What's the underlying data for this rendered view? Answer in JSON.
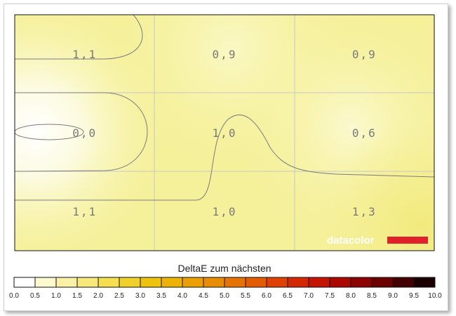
{
  "chart_data": {
    "type": "heatmap",
    "rows": 3,
    "cols": 3,
    "values": [
      [
        "1,1",
        "0,9",
        "0,9"
      ],
      [
        "0,0",
        "1,0",
        "0,6"
      ],
      [
        "1,1",
        "1,0",
        "1,3"
      ]
    ],
    "numeric_values": [
      [
        1.1,
        0.9,
        0.9
      ],
      [
        0.0,
        1.0,
        0.6
      ],
      [
        1.1,
        1.0,
        1.3
      ]
    ],
    "grid": true,
    "scale": {
      "title": "DeltaE zum nächsten",
      "min": 0.0,
      "max": 10.0,
      "ticks": [
        "0.0",
        "0.5",
        "1.0",
        "1.5",
        "2.0",
        "2.5",
        "3.0",
        "3.5",
        "4.0",
        "4.5",
        "5.0",
        "5.5",
        "6.0",
        "6.5",
        "7.0",
        "7.5",
        "8.0",
        "8.5",
        "9.0",
        "9.5",
        "10.0"
      ],
      "colors": [
        "#ffffff",
        "#fdf9cf",
        "#faf0a6",
        "#f7e87c",
        "#f5de4f",
        "#f0d12a",
        "#eec30d",
        "#ecb206",
        "#ea9f05",
        "#e88c04",
        "#e57404",
        "#e35c03",
        "#de4102",
        "#d42802",
        "#c41402",
        "#ab0802",
        "#8c0301",
        "#6a0201",
        "#420100",
        "#1a0000"
      ]
    }
  },
  "watermark": {
    "text": "datacolor",
    "bar_color": "#e0202a"
  },
  "colors": {
    "background": "#f6f4a0",
    "contour": "#7c7c7c",
    "grid": "#c8c8c8"
  }
}
